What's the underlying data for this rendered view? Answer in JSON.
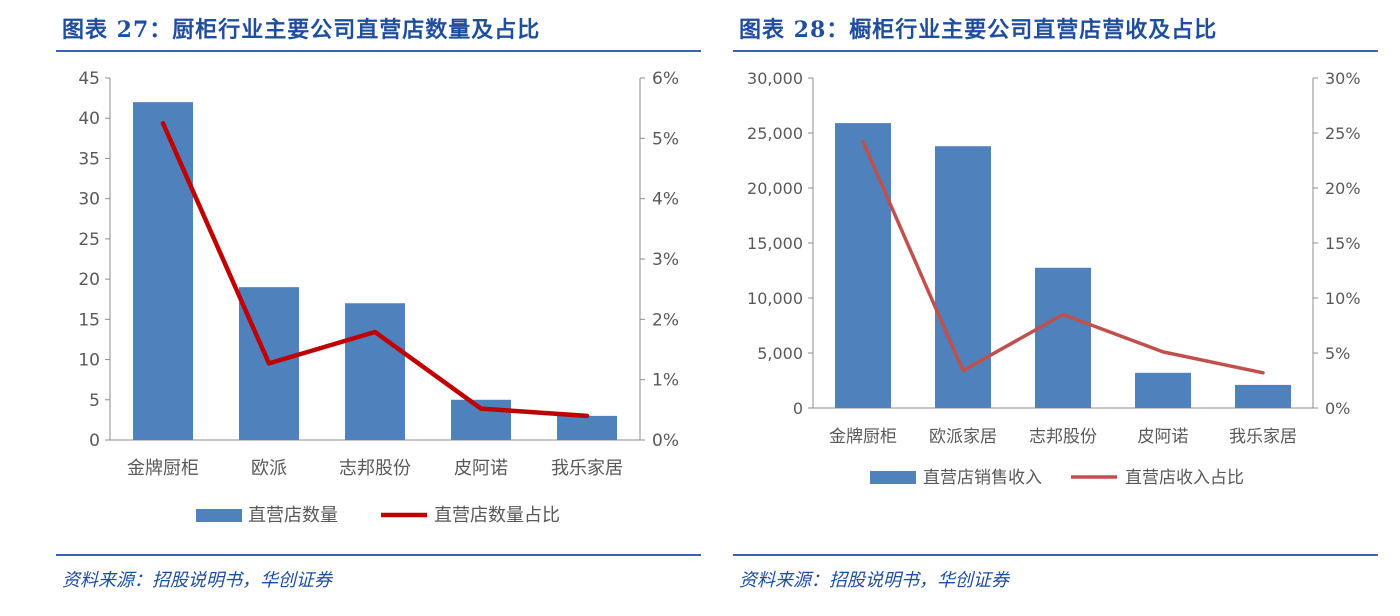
{
  "figures": [
    {
      "title": "图表 27：厨柜行业主要公司直营店数量及占比",
      "source": "资料来源：招股说明书，华创证券",
      "chart_data": {
        "type": "bar",
        "categories": [
          "金牌厨柜",
          "欧派",
          "志邦股份",
          "皮阿诺",
          "我乐家居"
        ],
        "series": [
          {
            "name": "直营店数量",
            "type": "bar",
            "axis": "left",
            "color": "#4f81bd",
            "values": [
              42,
              19,
              17,
              5,
              3
            ]
          },
          {
            "name": "直营店数量占比",
            "type": "line",
            "axis": "right",
            "color": "#c00000",
            "values": [
              5.25,
              1.27,
              1.79,
              0.52,
              0.4
            ]
          }
        ],
        "y_left": {
          "min": 0,
          "max": 45,
          "ticks": [
            0,
            5,
            10,
            15,
            20,
            25,
            30,
            35,
            40,
            45
          ],
          "tick_labels": [
            "0",
            "5",
            "10",
            "15",
            "20",
            "25",
            "30",
            "35",
            "40",
            "45"
          ]
        },
        "y_right": {
          "min": 0,
          "max": 6,
          "ticks": [
            0,
            1,
            2,
            3,
            4,
            5,
            6
          ],
          "tick_labels": [
            "0%",
            "1%",
            "2%",
            "3%",
            "4%",
            "5%",
            "6%"
          ],
          "unit": "%"
        },
        "grid": false,
        "legend": "bottom"
      }
    },
    {
      "title": "图表 28：橱柜行业主要公司直营店营收及占比",
      "source": "资料来源：招股说明书，华创证券",
      "chart_data": {
        "type": "bar",
        "categories": [
          "金牌厨柜",
          "欧派家居",
          "志邦股份",
          "皮阿诺",
          "我乐家居"
        ],
        "series": [
          {
            "name": "直营店销售收入",
            "type": "bar",
            "axis": "left",
            "color": "#4f81bd",
            "values": [
              25900,
              23800,
              12750,
              3200,
              2100
            ]
          },
          {
            "name": "直营店收入占比",
            "type": "line",
            "axis": "right",
            "color": "#c0504d",
            "values": [
              24.2,
              3.4,
              8.5,
              5.1,
              3.2
            ]
          }
        ],
        "y_left": {
          "min": 0,
          "max": 30000,
          "ticks": [
            0,
            5000,
            10000,
            15000,
            20000,
            25000,
            30000
          ],
          "tick_labels": [
            "0",
            "5,000",
            "10,000",
            "15,000",
            "20,000",
            "25,000",
            "30,000"
          ]
        },
        "y_right": {
          "min": 0,
          "max": 30,
          "ticks": [
            0,
            5,
            10,
            15,
            20,
            25,
            30
          ],
          "tick_labels": [
            "0%",
            "5%",
            "10%",
            "15%",
            "20%",
            "25%",
            "30%"
          ],
          "unit": "%"
        },
        "grid": false,
        "legend": "bottom"
      }
    }
  ]
}
